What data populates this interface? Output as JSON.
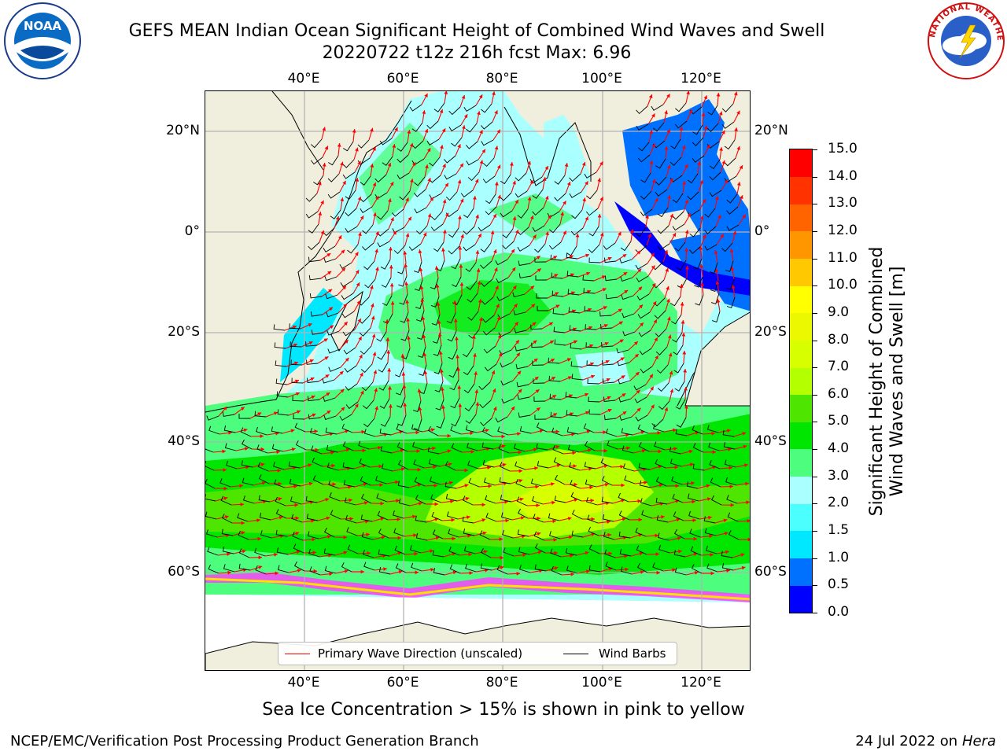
{
  "title_line1": "GEFS MEAN Indian Ocean Significant Height of Combined Wind Waves and Swell",
  "title_line2": "20220722 t12z 216h fcst   Max: 6.96",
  "logos": {
    "left": "NOAA",
    "right_text": "NATIONAL WEATHER SERVICE",
    "left_ring_text": "NATIONAL OCEANIC AND ATMOSPHERIC ADMINISTRATION · U.S. DEPARTMENT OF COMMERCE"
  },
  "axes": {
    "lon_ticks": [
      "40°E",
      "60°E",
      "80°E",
      "100°E",
      "120°E"
    ],
    "lat_ticks_left": [
      "20°N",
      "0°",
      "20°S",
      "40°S",
      "60°S"
    ],
    "lat_ticks_right": [
      "20°N",
      "0°",
      "20°S",
      "40°S",
      "60°S"
    ]
  },
  "legend": {
    "wave_label": "Primary Wave Direction (unscaled)",
    "barb_label": "Wind Barbs",
    "wave_color": "#ff0000",
    "barb_color": "#000000"
  },
  "colorbar": {
    "label_line1": "Significant Height of Combined",
    "label_line2": "Wind Waves and Swell [m]",
    "ticks": [
      "0.0",
      "0.5",
      "1.0",
      "1.5",
      "2.0",
      "3.0",
      "4.0",
      "5.0",
      "6.0",
      "7.0",
      "8.0",
      "9.0",
      "10.0",
      "11.0",
      "12.0",
      "13.0",
      "14.0",
      "15.0"
    ],
    "colors": [
      "#0000ff",
      "#0070ff",
      "#00e8ff",
      "#4cffff",
      "#aaffff",
      "#4dfd7e",
      "#00e600",
      "#4ee600",
      "#b4ff00",
      "#d8ff00",
      "#ecf800",
      "#ffff00",
      "#ffc800",
      "#ff9600",
      "#ff6400",
      "#ff3200",
      "#ff0000"
    ]
  },
  "sea_ice_note": "Sea Ice Concentration > 15% is shown in pink to yellow",
  "footer_left": "NCEP/EMC/Verification Post Processing Product Generation Branch",
  "footer_right_prefix": "24 Jul 2022 on ",
  "footer_right_machine": "Hera"
}
